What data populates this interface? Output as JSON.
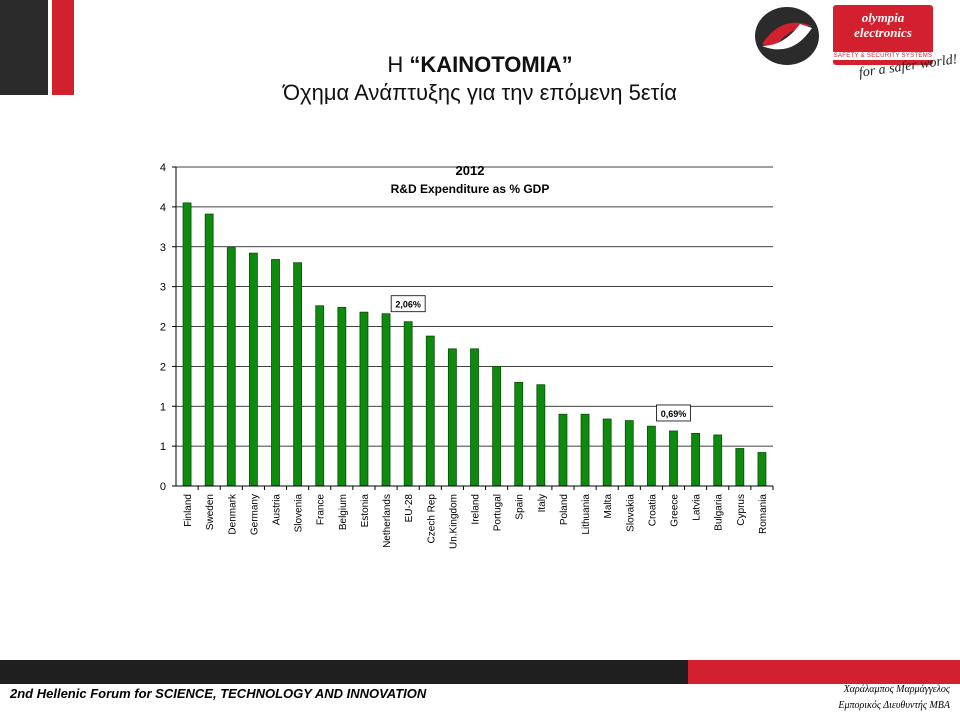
{
  "header": {
    "title_prefix": "Η ",
    "title_emph": "“ΚΑΙΝΟΤΟΜΙΑ”",
    "subtitle": "Όχημα Ανάπτυξης για την επόμενη 5ετία"
  },
  "brand": {
    "name_line1": "olympia",
    "name_line2": "electronics",
    "tagline": "SAFETY & SECURITY SYSTEMS",
    "slogan": "for a safer world!"
  },
  "footer": {
    "event": "2nd Hellenic Forum for SCIENCE, TECHNOLOGY AND INNOVATION",
    "author_name": "Χαράλαμπος Μαρμάγγελος",
    "author_role": "Εμπορικός Διευθυντής MBA"
  },
  "colors": {
    "bar": "#0e8a0e",
    "bar_edge": "#0a4f0a",
    "accent_red": "#d3202e",
    "dark": "#2b2b2b"
  },
  "chart_data": {
    "type": "bar",
    "title": "2012",
    "subtitle": "R&D Expenditure as % GDP",
    "categories": [
      "Finland",
      "Sweden",
      "Denmark",
      "Germany",
      "Austria",
      "Slovenia",
      "France",
      "Belgium",
      "Estonia",
      "Netherlands",
      "EU-28",
      "Czech Rep",
      "Un.Kingdom",
      "Ireland",
      "Portugal",
      "Spain",
      "Italy",
      "Poland",
      "Lithuania",
      "Malta",
      "Slovakia",
      "Croatia",
      "Greece",
      "Latvia",
      "Bulgaria",
      "Cyprus",
      "Romania"
    ],
    "values": [
      3.55,
      3.41,
      2.99,
      2.92,
      2.84,
      2.8,
      2.26,
      2.24,
      2.18,
      2.16,
      2.06,
      1.88,
      1.72,
      1.72,
      1.5,
      1.3,
      1.27,
      0.9,
      0.9,
      0.84,
      0.82,
      0.75,
      0.69,
      0.66,
      0.64,
      0.47,
      0.42
    ],
    "ytick_labels": [
      "0",
      "1",
      "1",
      "2",
      "2",
      "3",
      "3",
      "4",
      "4"
    ],
    "ylim": [
      0,
      4
    ],
    "grid": true,
    "annotations": [
      {
        "category": "EU-28",
        "text": "2,06%"
      },
      {
        "category": "Greece",
        "text": "0,69%"
      }
    ]
  }
}
